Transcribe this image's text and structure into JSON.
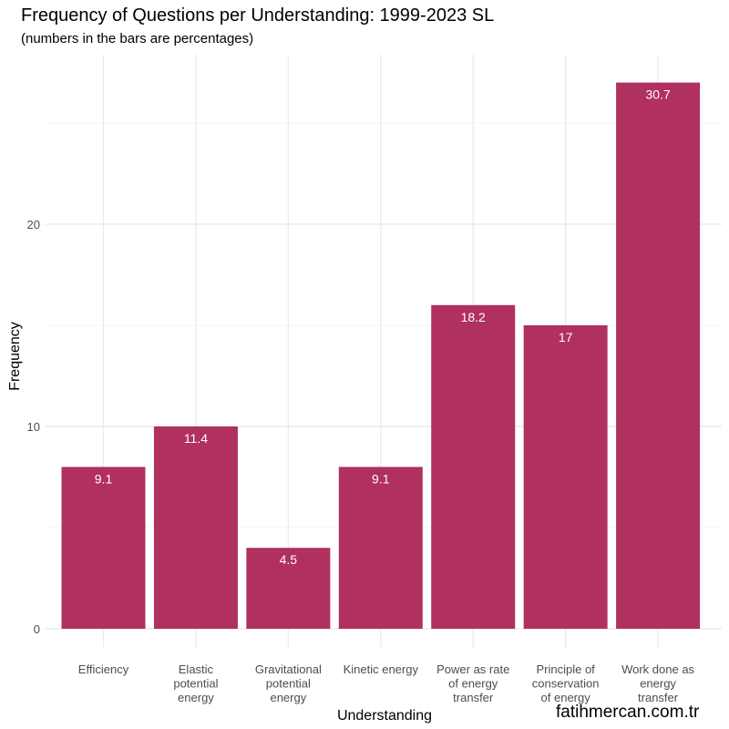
{
  "title": "Frequency of Questions per Understanding: 1999-2023 SL",
  "subtitle": "(numbers in the bars are percentages)",
  "watermark": "fatihmercan.com.tr",
  "colors": {
    "bar": "#b03060",
    "grid_major": "#ebebeb",
    "grid_minor": "#f5f5f5",
    "tick_text": "#4d4d4d",
    "bar_label": "#ffffff"
  },
  "chart_data": {
    "type": "bar",
    "title": "Frequency of Questions per Understanding: 1999-2023 SL",
    "subtitle": "(numbers in the bars are percentages)",
    "xlabel": "Understanding",
    "ylabel": "Frequency",
    "ylim": [
      0,
      28
    ],
    "yticks": [
      0,
      10,
      20
    ],
    "grid": true,
    "categories": [
      "Efficiency",
      "Elastic potential energy",
      "Gravitational potential energy",
      "Kinetic energy",
      "Power as rate of energy transfer",
      "Principle of conservation of energy",
      "Work done as energy transfer"
    ],
    "category_lines": [
      [
        "Efficiency"
      ],
      [
        "Elastic",
        "potential",
        "energy"
      ],
      [
        "Gravitational",
        "potential",
        "energy"
      ],
      [
        "Kinetic energy"
      ],
      [
        "Power as rate",
        "of energy",
        "transfer"
      ],
      [
        "Principle of",
        "conservation",
        "of energy"
      ],
      [
        "Work done as",
        "energy",
        "transfer"
      ]
    ],
    "values": [
      8,
      10,
      4,
      8,
      16,
      15,
      27
    ],
    "labels": [
      "9.1",
      "11.4",
      "4.5",
      "9.1",
      "18.2",
      "17",
      "30.7"
    ]
  }
}
